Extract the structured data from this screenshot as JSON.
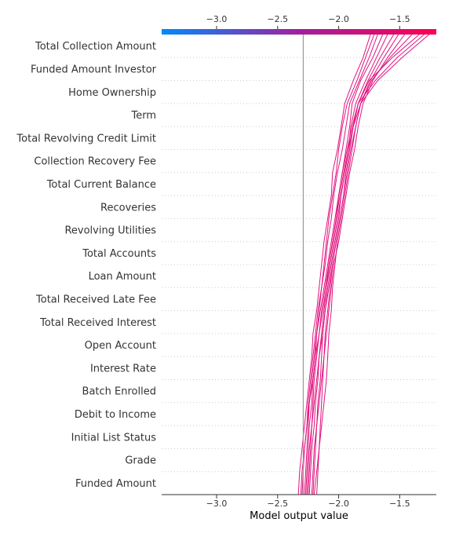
{
  "chart_data": {
    "type": "line",
    "xlabel": "Model output value",
    "xlim": [
      -3.45,
      -1.2
    ],
    "x_ticks": [
      "−3.0",
      "−2.5",
      "−2.0",
      "−1.5"
    ],
    "x_tick_values": [
      -3.0,
      -2.5,
      -2.0,
      -1.5
    ],
    "base_value": -2.29,
    "colorbar": {
      "from": "#008bfb",
      "mid": "#a020a0",
      "to": "#ff0052"
    },
    "line_color": "#e0137f",
    "features": [
      "Total Collection Amount",
      "Funded Amount Investor",
      "Home Ownership",
      "Term",
      "Total Revolving Credit Limit",
      "Collection Recovery Fee",
      "Total Current Balance",
      "Recoveries",
      "Revolving Utilities",
      "Total Accounts",
      "Loan Amount",
      "Total Received Late Fee",
      "Total Received Interest",
      "Open Account",
      "Interest Rate",
      "Batch Enrolled",
      "Debit to Income",
      "Initial List Status",
      "Grade",
      "Funded Amount"
    ],
    "series": [
      {
        "values": [
          -2.33,
          -2.32,
          -2.3,
          -2.28,
          -2.26,
          -2.24,
          -2.22,
          -2.21,
          -2.18,
          -2.16,
          -2.14,
          -2.12,
          -2.09,
          -2.06,
          -2.05,
          -2.01,
          -1.98,
          -1.95,
          -1.88,
          -1.8,
          -1.74
        ]
      },
      {
        "values": [
          -2.3,
          -2.29,
          -2.28,
          -2.26,
          -2.25,
          -2.23,
          -2.21,
          -2.19,
          -2.17,
          -2.14,
          -2.12,
          -2.1,
          -2.08,
          -2.05,
          -2.02,
          -2.0,
          -1.97,
          -1.93,
          -1.85,
          -1.78,
          -1.71
        ]
      },
      {
        "values": [
          -2.27,
          -2.26,
          -2.25,
          -2.24,
          -2.22,
          -2.21,
          -2.19,
          -2.18,
          -2.16,
          -2.14,
          -2.11,
          -2.09,
          -2.06,
          -2.04,
          -2.01,
          -1.97,
          -1.94,
          -1.91,
          -1.83,
          -1.75,
          -1.68
        ]
      },
      {
        "values": [
          -2.24,
          -2.23,
          -2.22,
          -2.2,
          -2.19,
          -2.17,
          -2.16,
          -2.14,
          -2.12,
          -2.1,
          -2.08,
          -2.05,
          -2.02,
          -2.0,
          -1.97,
          -1.94,
          -1.91,
          -1.89,
          -1.82,
          -1.72,
          -1.64
        ]
      },
      {
        "values": [
          -2.21,
          -2.2,
          -2.19,
          -2.18,
          -2.17,
          -2.15,
          -2.14,
          -2.13,
          -2.11,
          -2.09,
          -2.06,
          -2.03,
          -2.0,
          -1.98,
          -1.95,
          -1.92,
          -1.9,
          -1.86,
          -1.78,
          -1.69,
          -1.6
        ]
      },
      {
        "values": [
          -2.18,
          -2.17,
          -2.16,
          -2.15,
          -2.14,
          -2.13,
          -2.12,
          -2.11,
          -2.09,
          -2.07,
          -2.05,
          -2.02,
          -1.99,
          -1.96,
          -1.94,
          -1.91,
          -1.88,
          -1.84,
          -1.76,
          -1.66,
          -1.55
        ]
      },
      {
        "values": [
          -2.2,
          -2.18,
          -2.16,
          -2.14,
          -2.12,
          -2.1,
          -2.09,
          -2.08,
          -2.06,
          -2.05,
          -2.03,
          -2.01,
          -1.98,
          -1.95,
          -1.92,
          -1.89,
          -1.86,
          -1.82,
          -1.74,
          -1.63,
          -1.51
        ]
      },
      {
        "values": [
          -2.22,
          -2.21,
          -2.2,
          -2.18,
          -2.16,
          -2.14,
          -2.12,
          -2.1,
          -2.08,
          -2.06,
          -2.04,
          -2.0,
          -1.97,
          -1.94,
          -1.91,
          -1.87,
          -1.84,
          -1.8,
          -1.72,
          -1.6,
          -1.46
        ]
      },
      {
        "values": [
          -2.26,
          -2.25,
          -2.24,
          -2.22,
          -2.2,
          -2.18,
          -2.16,
          -2.13,
          -2.11,
          -2.08,
          -2.05,
          -2.02,
          -1.99,
          -1.96,
          -1.93,
          -1.9,
          -1.86,
          -1.82,
          -1.73,
          -1.58,
          -1.4
        ]
      },
      {
        "values": [
          -2.31,
          -2.3,
          -2.28,
          -2.26,
          -2.24,
          -2.21,
          -2.19,
          -2.16,
          -2.13,
          -2.1,
          -2.07,
          -2.04,
          -2.01,
          -1.98,
          -1.95,
          -1.92,
          -1.88,
          -1.84,
          -1.75,
          -1.56,
          -1.34
        ]
      },
      {
        "values": [
          -2.28,
          -2.27,
          -2.26,
          -2.25,
          -2.24,
          -2.22,
          -2.2,
          -2.18,
          -2.15,
          -2.12,
          -2.09,
          -2.06,
          -2.03,
          -2.0,
          -1.97,
          -1.93,
          -1.89,
          -1.84,
          -1.7,
          -1.52,
          -1.3
        ]
      },
      {
        "values": [
          -2.25,
          -2.24,
          -2.23,
          -2.22,
          -2.21,
          -2.2,
          -2.18,
          -2.16,
          -2.14,
          -2.11,
          -2.08,
          -2.05,
          -2.02,
          -1.99,
          -1.96,
          -1.92,
          -1.88,
          -1.82,
          -1.68,
          -1.48,
          -1.26
        ]
      }
    ]
  }
}
